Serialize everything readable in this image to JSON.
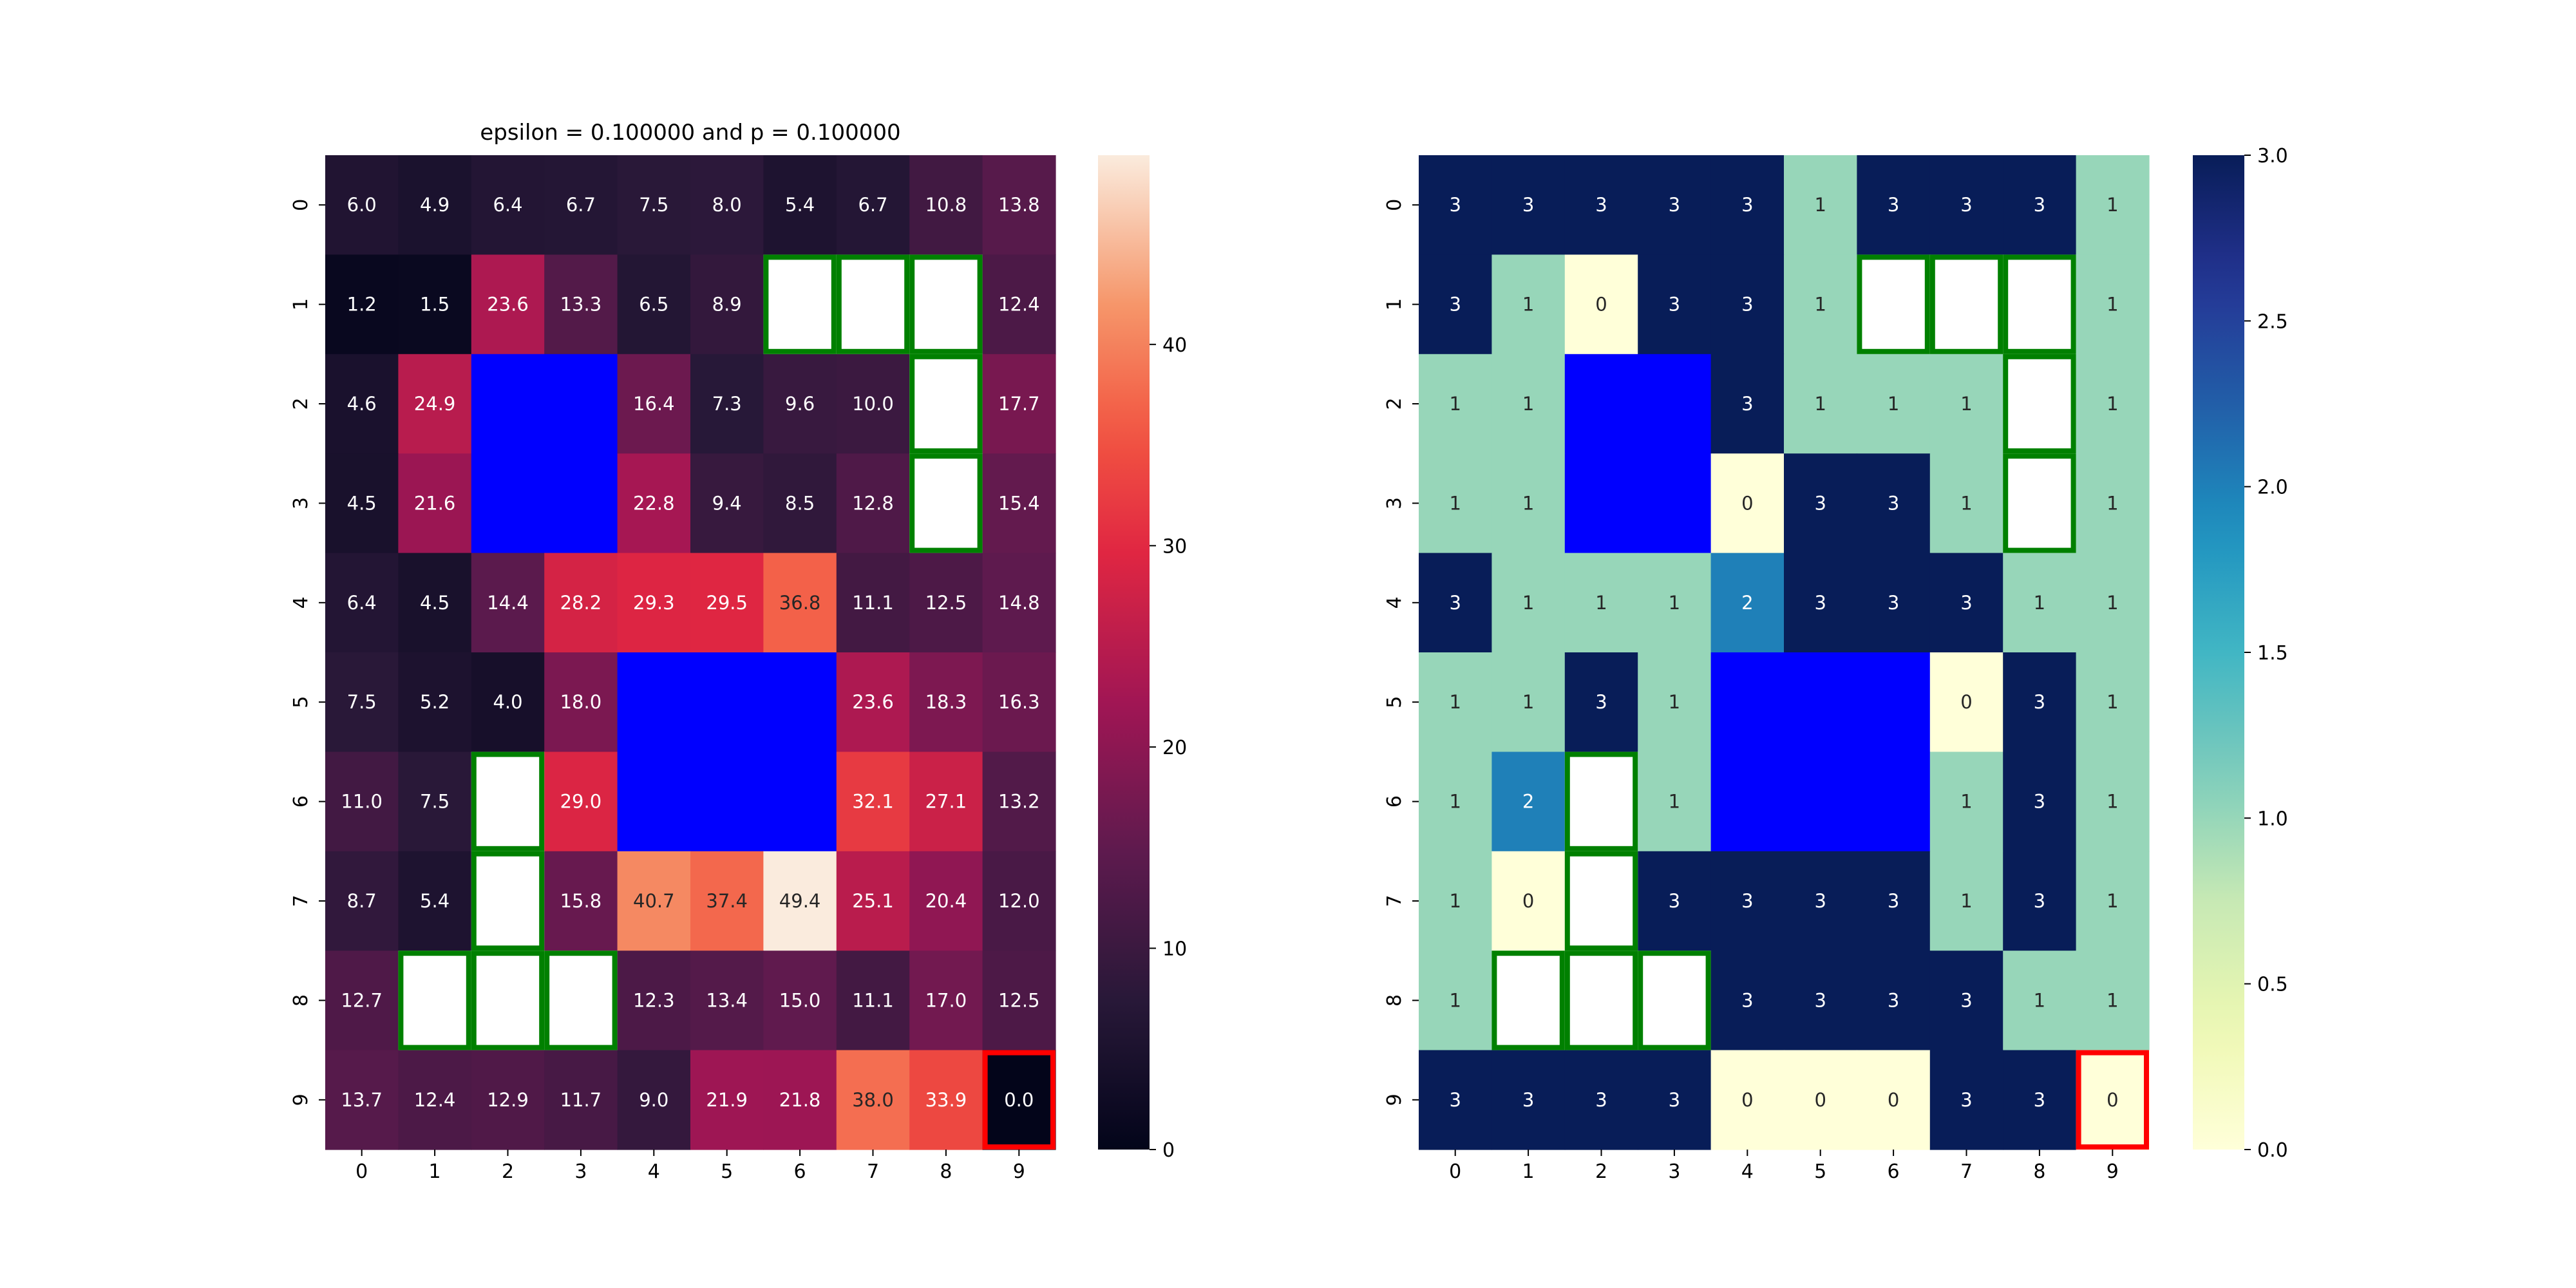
{
  "chart_data": [
    {
      "type": "heatmap",
      "title": "epsilon = 0.100000 and p = 0.100000",
      "xlabel": "",
      "ylabel": "",
      "x_ticks": [
        "0",
        "1",
        "2",
        "3",
        "4",
        "5",
        "6",
        "7",
        "8",
        "9"
      ],
      "y_ticks": [
        "0",
        "1",
        "2",
        "3",
        "4",
        "5",
        "6",
        "7",
        "8",
        "9"
      ],
      "colormap": "magma",
      "vmin": 0,
      "vmax": 49.4,
      "colorbar_ticks": [
        "0",
        "10",
        "20",
        "30",
        "40"
      ],
      "values": [
        [
          6.0,
          4.9,
          6.4,
          6.7,
          7.5,
          8.0,
          5.4,
          6.7,
          10.8,
          13.8
        ],
        [
          1.2,
          1.5,
          23.6,
          13.3,
          6.5,
          8.9,
          null,
          null,
          null,
          12.4
        ],
        [
          4.6,
          24.9,
          null,
          null,
          16.4,
          7.3,
          9.6,
          10.0,
          null,
          17.7
        ],
        [
          4.5,
          21.6,
          null,
          null,
          22.8,
          9.4,
          8.5,
          12.8,
          null,
          15.4
        ],
        [
          6.4,
          4.5,
          14.4,
          28.2,
          29.3,
          29.5,
          36.8,
          11.1,
          12.5,
          14.8
        ],
        [
          7.5,
          5.2,
          4.0,
          18.0,
          null,
          null,
          null,
          23.6,
          18.3,
          16.3
        ],
        [
          11.0,
          7.5,
          null,
          29.0,
          null,
          null,
          null,
          32.1,
          27.1,
          13.2
        ],
        [
          8.7,
          5.4,
          null,
          15.8,
          40.7,
          37.4,
          49.4,
          25.1,
          20.4,
          12.0
        ],
        [
          12.7,
          null,
          null,
          null,
          12.3,
          13.4,
          15.0,
          11.1,
          17.0,
          12.5
        ],
        [
          13.7,
          12.4,
          12.9,
          11.7,
          9.0,
          21.9,
          21.8,
          38.0,
          33.9,
          0.0
        ]
      ],
      "labels": [
        [
          "6.0",
          "4.9",
          "6.4",
          "6.7",
          "7.5",
          "8.0",
          "5.4",
          "6.7",
          "10.8",
          "13.8"
        ],
        [
          "1.2",
          "1.5",
          "23.6",
          "13.3",
          "6.5",
          "8.9",
          "",
          "",
          "",
          "12.4"
        ],
        [
          "4.6",
          "24.9",
          "",
          "",
          "16.4",
          "7.3",
          "9.6",
          "10.0",
          "",
          "17.7"
        ],
        [
          "4.5",
          "21.6",
          "",
          "",
          "22.8",
          "9.4",
          "8.5",
          "12.8",
          "",
          "15.4"
        ],
        [
          "6.4",
          "4.5",
          "14.4",
          "28.2",
          "29.3",
          "29.5",
          "36.8",
          "11.1",
          "12.5",
          "14.8"
        ],
        [
          "7.5",
          "5.2",
          "4.0",
          "18.0",
          "",
          "",
          "",
          "23.6",
          "18.3",
          "16.3"
        ],
        [
          "11.0",
          "7.5",
          "",
          "29.0",
          "",
          "",
          "",
          "32.1",
          "27.1",
          "13.2"
        ],
        [
          "8.7",
          "5.4",
          "",
          "15.8",
          "40.7",
          "37.4",
          "49.4",
          "25.1",
          "20.4",
          "12.0"
        ],
        [
          "12.7",
          "",
          "",
          "",
          "12.3",
          "13.4",
          "15.0",
          "11.1",
          "17.0",
          "12.5"
        ],
        [
          "13.7",
          "12.4",
          "12.9",
          "11.7",
          "9.0",
          "21.9",
          "21.8",
          "38.0",
          "33.9",
          "0.0"
        ]
      ]
    },
    {
      "type": "heatmap",
      "title": "",
      "xlabel": "",
      "ylabel": "",
      "x_ticks": [
        "0",
        "1",
        "2",
        "3",
        "4",
        "5",
        "6",
        "7",
        "8",
        "9"
      ],
      "y_ticks": [
        "0",
        "1",
        "2",
        "3",
        "4",
        "5",
        "6",
        "7",
        "8",
        "9"
      ],
      "colormap": "YlGnBu",
      "vmin": 0,
      "vmax": 3,
      "colorbar_ticks": [
        "0.0",
        "0.5",
        "1.0",
        "1.5",
        "2.0",
        "2.5",
        "3.0"
      ],
      "values": [
        [
          3,
          3,
          3,
          3,
          3,
          1,
          3,
          3,
          3,
          1
        ],
        [
          3,
          1,
          0,
          3,
          3,
          1,
          null,
          null,
          null,
          1
        ],
        [
          1,
          1,
          null,
          null,
          3,
          1,
          1,
          1,
          null,
          1
        ],
        [
          1,
          1,
          null,
          null,
          0,
          3,
          3,
          1,
          null,
          1
        ],
        [
          3,
          1,
          1,
          1,
          2,
          3,
          3,
          3,
          1,
          1
        ],
        [
          1,
          1,
          3,
          1,
          null,
          null,
          null,
          0,
          3,
          1
        ],
        [
          1,
          2,
          null,
          1,
          null,
          null,
          null,
          1,
          3,
          1
        ],
        [
          1,
          0,
          null,
          3,
          3,
          3,
          3,
          1,
          3,
          1
        ],
        [
          1,
          null,
          null,
          null,
          3,
          3,
          3,
          3,
          1,
          1
        ],
        [
          3,
          3,
          3,
          3,
          0,
          0,
          0,
          3,
          3,
          0
        ]
      ],
      "labels": [
        [
          "3",
          "3",
          "3",
          "3",
          "3",
          "1",
          "3",
          "3",
          "3",
          "1"
        ],
        [
          "3",
          "1",
          "0",
          "3",
          "3",
          "1",
          "",
          "",
          "",
          "1"
        ],
        [
          "1",
          "1",
          "",
          "",
          "3",
          "1",
          "1",
          "1",
          "",
          "1"
        ],
        [
          "1",
          "1",
          "",
          "",
          "0",
          "3",
          "3",
          "1",
          "",
          "1"
        ],
        [
          "3",
          "1",
          "1",
          "1",
          "2",
          "3",
          "3",
          "3",
          "1",
          "1"
        ],
        [
          "1",
          "1",
          "3",
          "1",
          "",
          "",
          "",
          "0",
          "3",
          "1"
        ],
        [
          "1",
          "2",
          "",
          "1",
          "",
          "",
          "",
          "1",
          "3",
          "1"
        ],
        [
          "1",
          "0",
          "",
          "3",
          "3",
          "3",
          "3",
          "1",
          "3",
          "1"
        ],
        [
          "1",
          "",
          "",
          "",
          "3",
          "3",
          "3",
          "3",
          "1",
          "1"
        ],
        [
          "3",
          "3",
          "3",
          "3",
          "0",
          "0",
          "0",
          "3",
          "3",
          "0"
        ]
      ]
    }
  ],
  "overlays": {
    "obstacle_color": "#0000ff",
    "wall_outline_color": "#008000",
    "goal_outline_color": "#ff0000",
    "obstacle_cells": [
      [
        2,
        2
      ],
      [
        2,
        3
      ],
      [
        3,
        2
      ],
      [
        3,
        3
      ],
      [
        5,
        4
      ],
      [
        5,
        5
      ],
      [
        5,
        6
      ],
      [
        6,
        4
      ],
      [
        6,
        5
      ],
      [
        6,
        6
      ]
    ],
    "wall_cells": [
      [
        1,
        6
      ],
      [
        1,
        7
      ],
      [
        1,
        8
      ],
      [
        2,
        8
      ],
      [
        3,
        8
      ],
      [
        6,
        2
      ],
      [
        7,
        2
      ],
      [
        8,
        1
      ],
      [
        8,
        2
      ],
      [
        8,
        3
      ]
    ],
    "goal_cells": [
      [
        9,
        9
      ]
    ]
  }
}
